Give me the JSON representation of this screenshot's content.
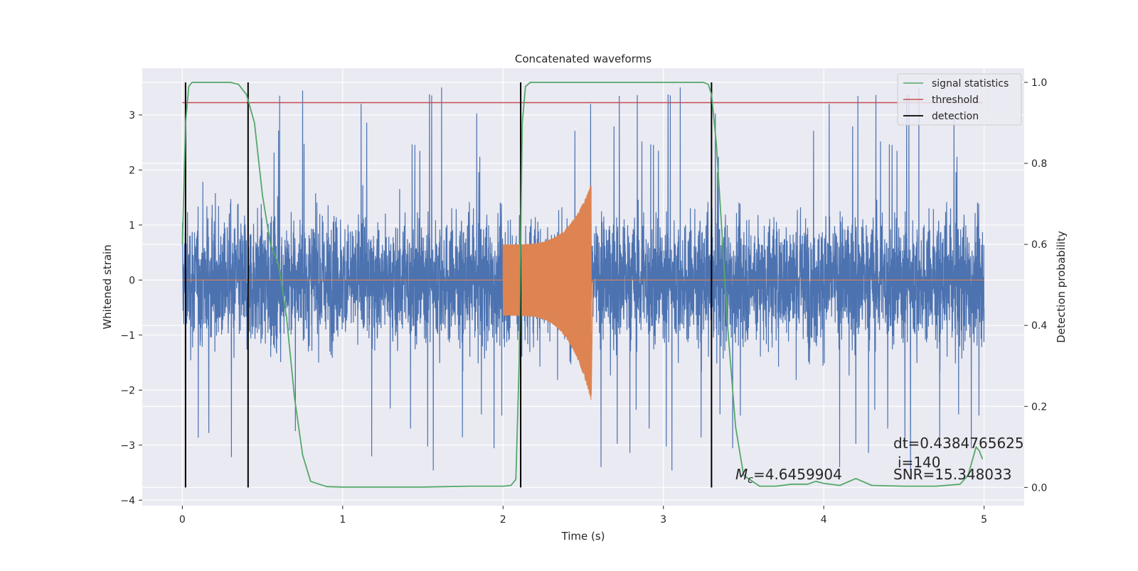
{
  "chart_data": {
    "type": "line",
    "title": "Concatenated waveforms",
    "xlabel": "Time (s)",
    "ylabel": "Whitened strain",
    "y2label": "Detection probability",
    "xlim": [
      -0.25,
      5.25
    ],
    "ylim": [
      -4.1,
      3.85
    ],
    "y2lim": [
      -0.045,
      1.035
    ],
    "xticks": [
      0,
      1,
      2,
      3,
      4,
      5
    ],
    "xtick_labels": [
      "0",
      "1",
      "2",
      "3",
      "4",
      "5"
    ],
    "yticks": [
      -4,
      -3,
      -2,
      -1,
      0,
      1,
      2,
      3
    ],
    "ytick_labels": [
      "−4",
      "−3",
      "−2",
      "−1",
      "0",
      "1",
      "2",
      "3"
    ],
    "y2ticks": [
      0.0,
      0.2,
      0.4,
      0.6,
      0.8,
      1.0
    ],
    "y2tick_labels": [
      "0.0",
      "0.2",
      "0.4",
      "0.6",
      "0.8",
      "1.0"
    ],
    "grid": true,
    "legend_position": "top-right",
    "legend": [
      {
        "label": "signal statistics",
        "color": "#55a868"
      },
      {
        "label": "threshold",
        "color": "#c44e52"
      },
      {
        "label": "detection",
        "color": "#000000"
      }
    ],
    "series_colors": {
      "whitened_noise": "#4c72b0",
      "injected_signal": "#dd8452",
      "signal_statistics": "#55a868",
      "threshold": "#c44e52",
      "detection": "#000000"
    },
    "noise": {
      "x_range": [
        0,
        5
      ],
      "typical_amplitude": 1.2,
      "min": -3.8,
      "max": 3.5
    },
    "injected_signal": {
      "x_start": 2.0,
      "x_merger": 2.55,
      "x_end": 2.56,
      "start_amplitude": 0.65,
      "peak_positive": 1.75,
      "peak_negative": -2.2
    },
    "signal_statistics": {
      "x": [
        0.0,
        0.02,
        0.04,
        0.06,
        0.08,
        0.1,
        0.2,
        0.3,
        0.35,
        0.4,
        0.45,
        0.5,
        0.55,
        0.6,
        0.62,
        0.65,
        0.7,
        0.75,
        0.8,
        0.9,
        1.0,
        1.5,
        1.8,
        2.0,
        2.05,
        2.08,
        2.1,
        2.12,
        2.14,
        2.17,
        2.2,
        2.5,
        3.0,
        3.25,
        3.28,
        3.3,
        3.33,
        3.37,
        3.4,
        3.45,
        3.5,
        3.6,
        3.7,
        3.8,
        3.9,
        3.95,
        4.0,
        4.1,
        4.2,
        4.3,
        4.5,
        4.7,
        4.85,
        4.9,
        4.95,
        4.97,
        4.99
      ],
      "y": [
        0.6,
        0.9,
        0.99,
        1.0,
        1.0,
        1.0,
        1.0,
        1.0,
        0.995,
        0.97,
        0.9,
        0.72,
        0.6,
        0.55,
        0.5,
        0.42,
        0.22,
        0.08,
        0.015,
        0.002,
        0.001,
        0.001,
        0.003,
        0.003,
        0.005,
        0.02,
        0.3,
        0.9,
        0.99,
        1.0,
        1.0,
        1.0,
        1.0,
        1.0,
        0.995,
        0.97,
        0.85,
        0.6,
        0.4,
        0.15,
        0.03,
        0.003,
        0.003,
        0.008,
        0.008,
        0.015,
        0.01,
        0.005,
        0.022,
        0.005,
        0.003,
        0.003,
        0.008,
        0.03,
        0.1,
        0.09,
        0.07
      ]
    },
    "threshold": {
      "value": 0.95,
      "x_range": [
        0,
        4.99
      ]
    },
    "detections": [
      0.02,
      0.41,
      2.11,
      3.3
    ],
    "detection_y_range": [
      0.0,
      1.0
    ],
    "annotations": {
      "mc_symbol": "M",
      "mc_subscript": "c",
      "mc_value": "=4.6459904",
      "dt": "dt=0.4384765625",
      "i": "i=140",
      "snr": "SNR=15.348033"
    }
  }
}
